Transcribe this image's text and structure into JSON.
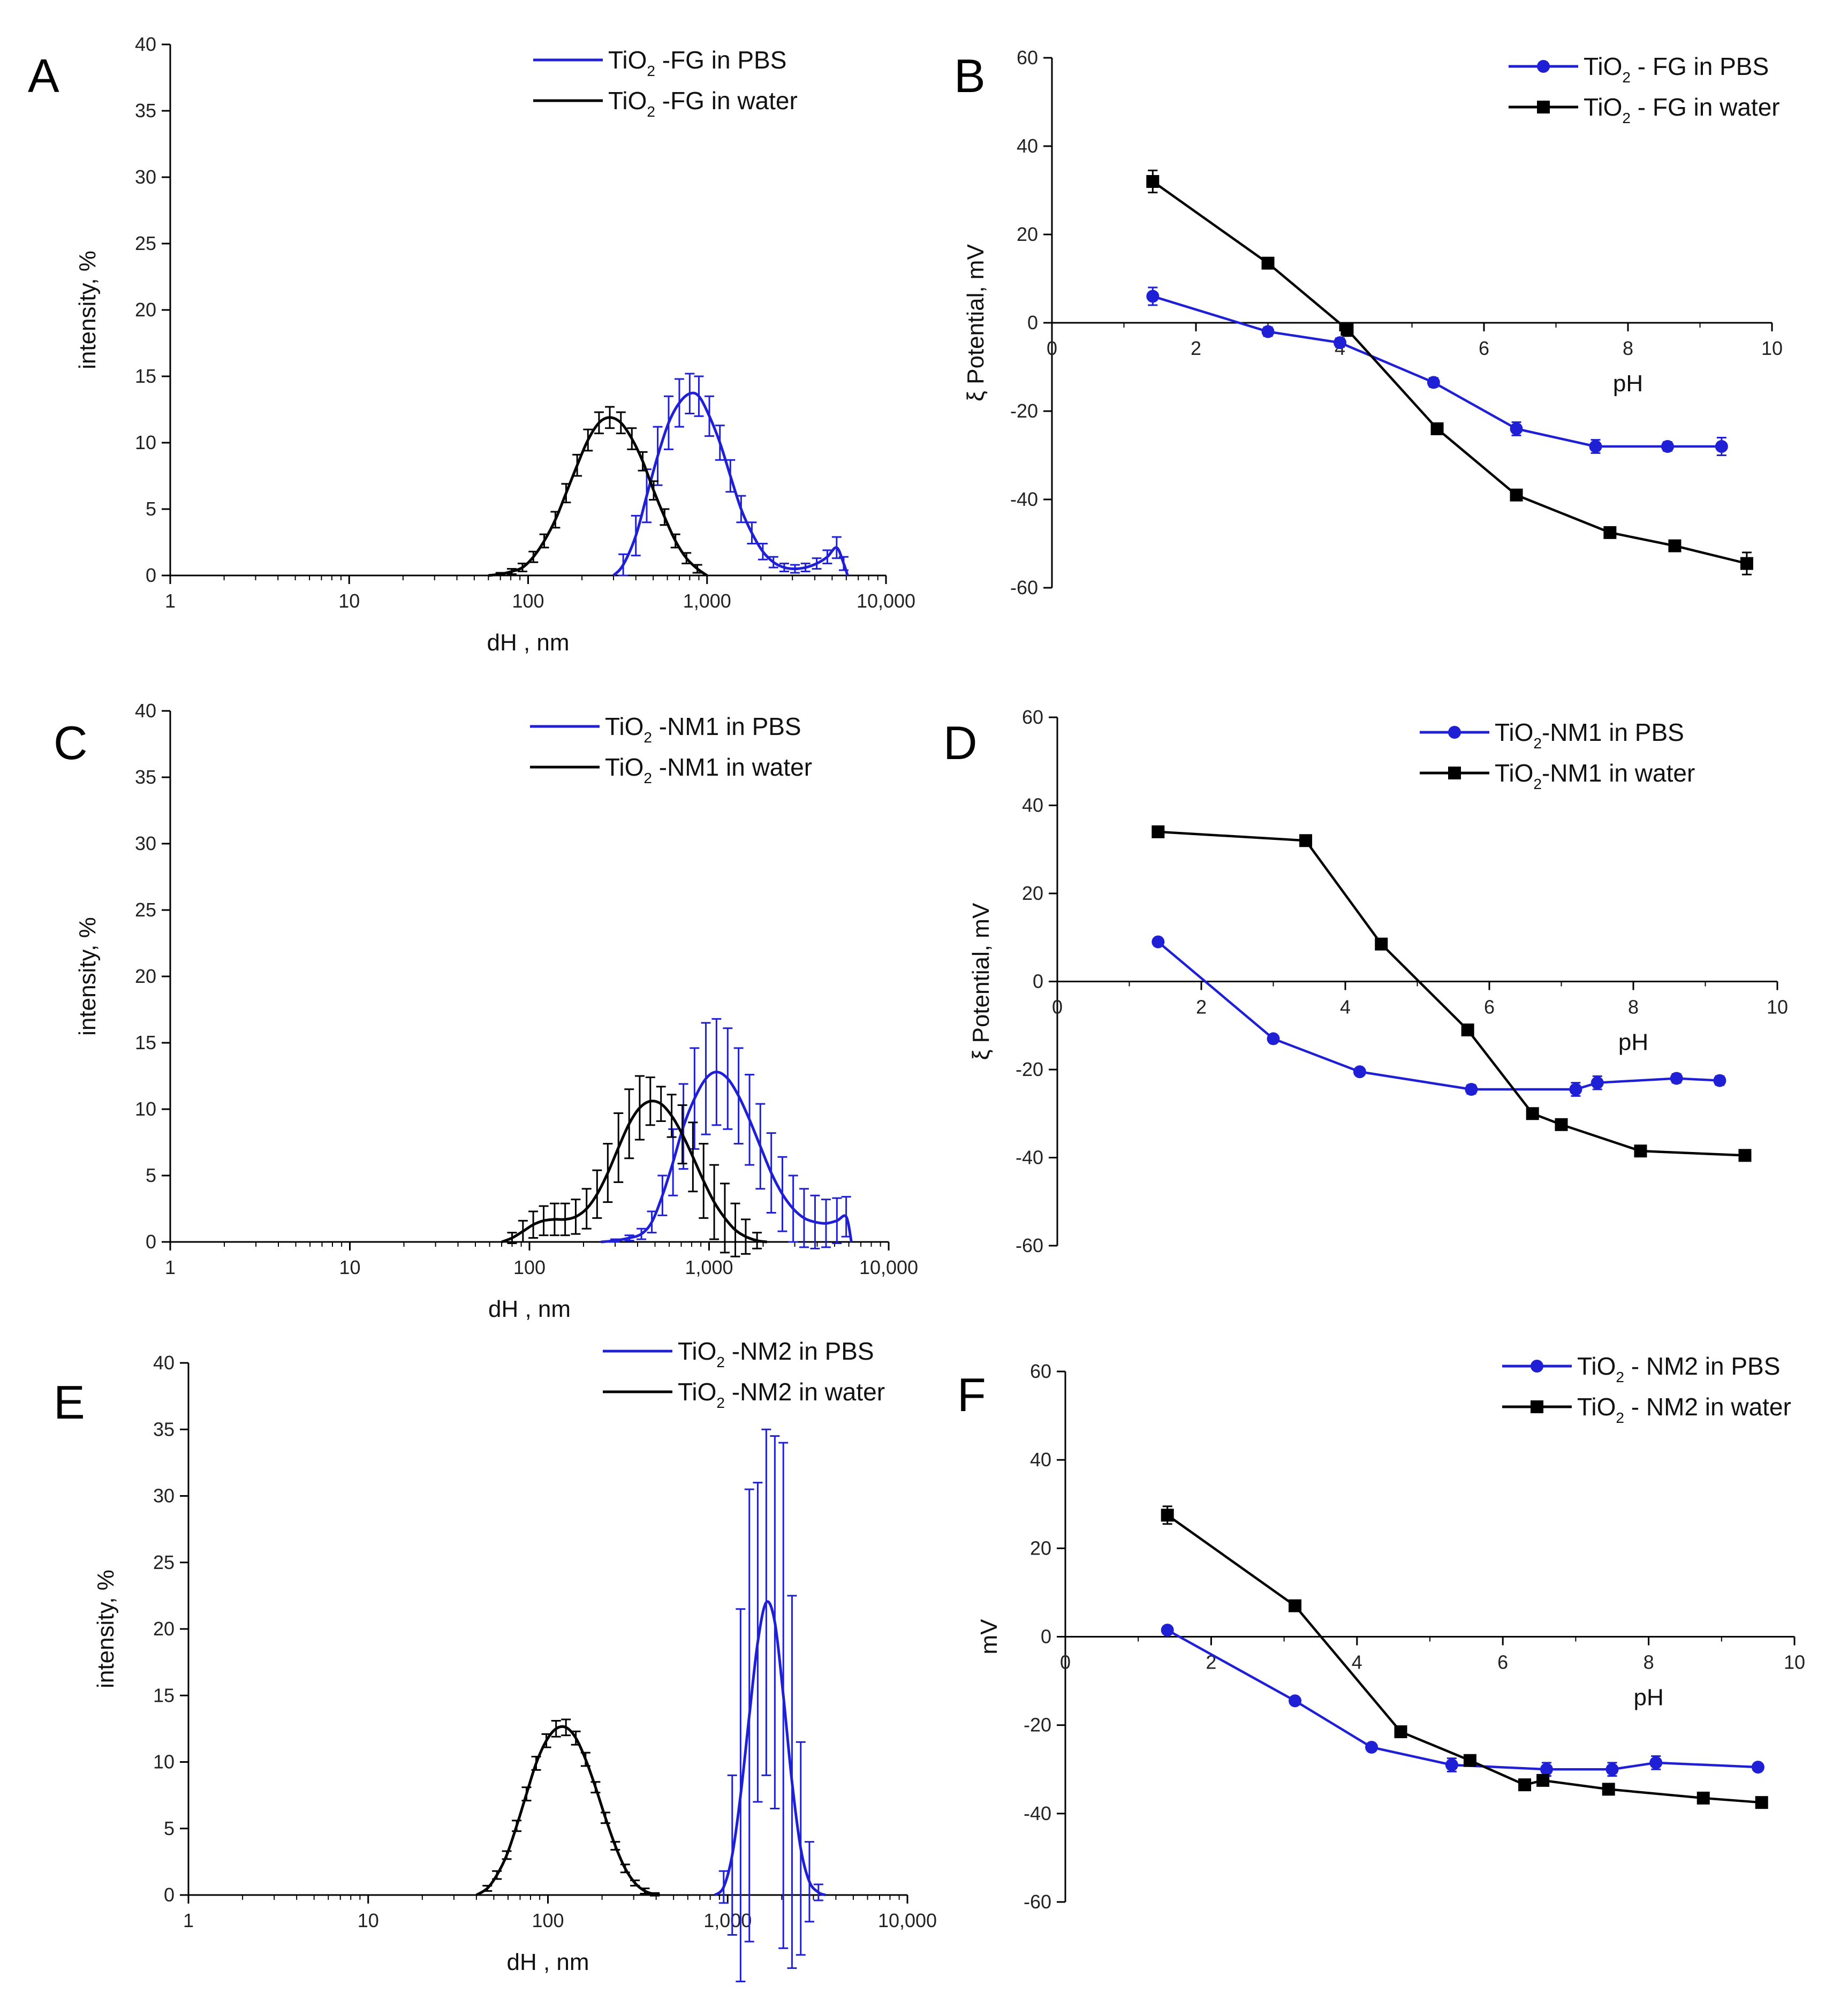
{
  "colors": {
    "pbs": "#1f1fd6",
    "water": "#000000"
  },
  "chart_data": [
    {
      "panel": "A",
      "type": "line",
      "xscale": "log",
      "xlabel": "dH , nm",
      "ylabel": "intensity, %",
      "xlim": [
        1,
        10000
      ],
      "ylim": [
        0,
        40
      ],
      "xticks": [
        1,
        10,
        100,
        1000,
        10000
      ],
      "xticklabels": [
        "1",
        "10",
        "100",
        "1,000",
        "10,000"
      ],
      "yticks": [
        0,
        5,
        10,
        15,
        20,
        25,
        30,
        35,
        40
      ],
      "legend": {
        "position": "top-right"
      },
      "series": [
        {
          "name": "TiO2 -FG in PBS",
          "base": "TiO",
          "sub": "2",
          "suffix": " -FG in PBS",
          "color": "#1f1fd6",
          "x": [
            300,
            340,
            400,
            460,
            530,
            610,
            700,
            800,
            900,
            1030,
            1180,
            1350,
            1550,
            1780,
            2050,
            2350,
            2700,
            3100,
            3550,
            4100,
            4700,
            5300,
            5800,
            6100
          ],
          "y": [
            0,
            0.8,
            3,
            6,
            9,
            11.5,
            13,
            13.7,
            13.5,
            12,
            10,
            7.5,
            5,
            3.2,
            1.8,
            1,
            0.6,
            0.5,
            0.6,
            0.9,
            1.4,
            2.1,
            0.9,
            0
          ],
          "err": [
            0,
            0.8,
            1.5,
            2,
            2.2,
            2,
            1.8,
            1.5,
            1.5,
            1.5,
            1.3,
            1.2,
            1,
            0.8,
            0.6,
            0.4,
            0.3,
            0.3,
            0.3,
            0.4,
            0.5,
            0.8,
            0.5,
            0
          ]
        },
        {
          "name": "TiO2 -FG in water",
          "base": "TiO",
          "sub": "2",
          "suffix": " -FG in water",
          "color": "#000000",
          "x": [
            60,
            70,
            81,
            93,
            107,
            123,
            142,
            163,
            188,
            216,
            249,
            286,
            330,
            380,
            437,
            503,
            579,
            666,
            767,
            883,
            1000
          ],
          "y": [
            0,
            0.1,
            0.3,
            0.6,
            1.4,
            2.6,
            4.2,
            6.2,
            8.3,
            10.2,
            11.5,
            11.9,
            11.5,
            10.3,
            8.6,
            6.4,
            4.4,
            2.6,
            1.3,
            0.5,
            0
          ],
          "err": [
            0,
            0.1,
            0.2,
            0.3,
            0.4,
            0.5,
            0.6,
            0.7,
            0.8,
            0.8,
            0.8,
            0.8,
            0.8,
            0.8,
            0.7,
            0.7,
            0.6,
            0.5,
            0.4,
            0.3,
            0
          ]
        }
      ]
    },
    {
      "panel": "B",
      "type": "line",
      "xlabel": "pH",
      "ylabel": "ξ Potential, mV",
      "xlim": [
        0,
        10
      ],
      "ylim": [
        -60,
        60
      ],
      "xticks": [
        0,
        2,
        4,
        6,
        8,
        10
      ],
      "yticks": [
        -60,
        -40,
        -20,
        0,
        20,
        40,
        60
      ],
      "legend": {
        "position": "top-right"
      },
      "series": [
        {
          "name": "TiO2 - FG in PBS",
          "base": "TiO",
          "sub": "2",
          "suffix": " - FG in PBS",
          "color": "#1f1fd6",
          "marker": "circle",
          "x": [
            1.4,
            3.0,
            4.0,
            5.3,
            6.45,
            7.55,
            8.55,
            9.3
          ],
          "y": [
            6,
            -2,
            -4.5,
            -13.5,
            -24,
            -28,
            -28,
            -28
          ],
          "err": [
            2,
            1,
            1,
            1,
            1.5,
            1.5,
            1,
            2
          ]
        },
        {
          "name": "TiO2 - FG in water",
          "base": "TiO",
          "sub": "2",
          "suffix": " - FG in water",
          "color": "#000000",
          "marker": "square",
          "x": [
            1.4,
            3.0,
            4.1,
            5.35,
            6.45,
            7.75,
            8.65,
            9.65
          ],
          "y": [
            32,
            13.5,
            -1.5,
            -24,
            -39,
            -47.5,
            -50.5,
            -54.5
          ],
          "err": [
            2.5,
            1,
            1.5,
            1,
            1,
            1,
            1,
            2.5
          ]
        }
      ]
    },
    {
      "panel": "C",
      "type": "line",
      "xscale": "log",
      "xlabel": "dH , nm",
      "ylabel": "intensity, %",
      "xlim": [
        1,
        10000
      ],
      "ylim": [
        0,
        40
      ],
      "xticks": [
        1,
        10,
        100,
        1000,
        10000
      ],
      "xticklabels": [
        "1",
        "10",
        "100",
        "1,000",
        "10,000"
      ],
      "yticks": [
        0,
        5,
        10,
        15,
        20,
        25,
        30,
        35,
        40
      ],
      "legend": {
        "position": "top-right"
      },
      "series": [
        {
          "name": "TiO2 -NM1 in PBS",
          "base": "TiO",
          "sub": "2",
          "suffix": " -NM1 in PBS",
          "color": "#1f1fd6",
          "x": [
            250,
            300,
            360,
            420,
            480,
            550,
            630,
            720,
            830,
            960,
            1100,
            1270,
            1460,
            1680,
            1930,
            2220,
            2560,
            2940,
            3380,
            3890,
            4480,
            5150,
            5800,
            6200
          ],
          "y": [
            0,
            0.1,
            0.3,
            0.6,
            1.5,
            3.5,
            6,
            8.7,
            10.8,
            12.3,
            12.8,
            12.3,
            11,
            9.2,
            7.2,
            5.2,
            3.6,
            2.5,
            1.8,
            1.5,
            1.4,
            1.6,
            1.9,
            0
          ],
          "err": [
            0,
            0.1,
            0.2,
            0.4,
            0.8,
            1.5,
            2.5,
            3.2,
            3.8,
            4.2,
            4,
            3.8,
            3.6,
            3.4,
            3.2,
            3,
            2.8,
            2.5,
            2.2,
            2,
            1.8,
            1.7,
            1.5,
            0
          ]
        },
        {
          "name": "TiO2 -NM1 in water",
          "base": "TiO",
          "sub": "2",
          "suffix": " -NM1 in water",
          "color": "#000000",
          "x": [
            70,
            80,
            92,
            105,
            120,
            138,
            158,
            181,
            208,
            238,
            273,
            313,
            359,
            411,
            471,
            540,
            619,
            710,
            813,
            932,
            1068,
            1224,
            1400,
            1600,
            1850,
            2100
          ],
          "y": [
            0,
            0.3,
            0.8,
            1.3,
            1.6,
            1.7,
            1.7,
            1.9,
            2.5,
            3.6,
            5.2,
            7.1,
            8.9,
            10.1,
            10.6,
            10.4,
            9.5,
            8.1,
            6.4,
            4.6,
            3,
            1.8,
            0.9,
            0.4,
            0.1,
            0
          ],
          "err": [
            0,
            0.4,
            0.8,
            1,
            1.1,
            1.2,
            1.2,
            1.3,
            1.5,
            1.8,
            2.2,
            2.6,
            2.6,
            2.4,
            1.8,
            1.3,
            1.6,
            2.2,
            2.6,
            2.8,
            2.8,
            2.6,
            2,
            1.3,
            0.6,
            0
          ]
        }
      ]
    },
    {
      "panel": "D",
      "type": "line",
      "xlabel": "pH",
      "ylabel": "ξ Potential, mV",
      "xlim": [
        0,
        10
      ],
      "ylim": [
        -60,
        60
      ],
      "xticks": [
        0,
        2,
        4,
        6,
        8,
        10
      ],
      "yticks": [
        -60,
        -40,
        -20,
        0,
        20,
        40,
        60
      ],
      "legend": {
        "position": "top-right"
      },
      "series": [
        {
          "name": "TiO2-NM1 in PBS",
          "base": "TiO",
          "sub": "2",
          "suffix": "-NM1 in PBS",
          "color": "#1f1fd6",
          "marker": "circle",
          "x": [
            1.4,
            3.0,
            4.2,
            5.75,
            7.2,
            7.5,
            8.6,
            9.2
          ],
          "y": [
            9,
            -13,
            -20.5,
            -24.5,
            -24.5,
            -23,
            -22,
            -22.5
          ],
          "err": [
            0.5,
            0.5,
            0.5,
            1,
            1.5,
            1.5,
            1,
            1
          ]
        },
        {
          "name": "TiO2-NM1 in water",
          "base": "TiO",
          "sub": "2",
          "suffix": "-NM1 in water",
          "color": "#000000",
          "marker": "square",
          "x": [
            1.4,
            3.45,
            4.5,
            5.7,
            6.6,
            7.0,
            8.1,
            9.55
          ],
          "y": [
            34,
            32,
            8.5,
            -11,
            -30,
            -32.5,
            -38.5,
            -39.5
          ],
          "err": [
            0.5,
            0.5,
            0.5,
            0.5,
            0.5,
            0.5,
            0.5,
            0.5
          ]
        }
      ]
    },
    {
      "panel": "E",
      "type": "line",
      "xscale": "log",
      "xlabel": "dH , nm",
      "ylabel": "intensity, %",
      "xlim": [
        1,
        10000
      ],
      "ylim": [
        0,
        40
      ],
      "xticks": [
        1,
        10,
        100,
        1000,
        10000
      ],
      "xticklabels": [
        "1",
        "10",
        "100",
        "1,000",
        "10,000"
      ],
      "yticks": [
        0,
        5,
        10,
        15,
        20,
        25,
        30,
        35,
        40
      ],
      "legend": {
        "position": "top-right"
      },
      "series": [
        {
          "name": "TiO2 -NM2 in PBS",
          "base": "TiO",
          "sub": "2",
          "suffix": " -NM2 in PBS",
          "color": "#1f1fd6",
          "x": [
            850,
            950,
            1060,
            1180,
            1320,
            1470,
            1640,
            1830,
            2040,
            2280,
            2550,
            2850,
            3200,
            3500
          ],
          "y": [
            0,
            0.6,
            3,
            7.5,
            13.5,
            19,
            22,
            20.5,
            15,
            8.5,
            3.5,
            1,
            0.2,
            0
          ],
          "err": [
            0,
            1.2,
            6,
            14,
            17,
            12,
            13,
            14,
            19,
            14,
            8,
            3,
            0.6,
            0
          ]
        },
        {
          "name": "TiO2 -NM2 in water",
          "base": "TiO",
          "sub": "2",
          "suffix": " -NM2 in water",
          "color": "#000000",
          "x": [
            40,
            46,
            52,
            59,
            67,
            76,
            86,
            98,
            111,
            126,
            143,
            162,
            184,
            209,
            237,
            269,
            305,
            346,
            393,
            420
          ],
          "y": [
            0,
            0.5,
            1.5,
            3,
            5.2,
            7.6,
            9.9,
            11.6,
            12.5,
            12.6,
            11.8,
            10.2,
            8.1,
            5.8,
            3.7,
            2,
            0.9,
            0.3,
            0.05,
            0
          ],
          "err": [
            0,
            0.2,
            0.3,
            0.3,
            0.4,
            0.5,
            0.5,
            0.5,
            0.6,
            0.6,
            0.5,
            0.5,
            0.4,
            0.4,
            0.3,
            0.3,
            0.2,
            0.2,
            0.1,
            0
          ]
        }
      ]
    },
    {
      "panel": "F",
      "type": "line",
      "xlabel": "pH",
      "ylabel": "mV",
      "xlim": [
        0,
        10
      ],
      "ylim": [
        -60,
        60
      ],
      "xticks": [
        0,
        2,
        4,
        6,
        8,
        10
      ],
      "yticks": [
        -60,
        -40,
        -20,
        0,
        20,
        40,
        60
      ],
      "legend": {
        "position": "top-right"
      },
      "series": [
        {
          "name": "TiO2 - NM2 in PBS",
          "base": "TiO",
          "sub": "2",
          "suffix": " - NM2 in PBS",
          "color": "#1f1fd6",
          "marker": "circle",
          "x": [
            1.4,
            3.15,
            4.2,
            5.3,
            6.6,
            7.5,
            8.1,
            9.5
          ],
          "y": [
            1.5,
            -14.5,
            -25,
            -29,
            -30,
            -30,
            -28.5,
            -29.5
          ],
          "err": [
            0.5,
            0.5,
            0.5,
            1.5,
            1.5,
            1.5,
            1.5,
            0.5
          ]
        },
        {
          "name": "TiO2 - NM2 in water",
          "base": "TiO",
          "sub": "2",
          "suffix": " - NM2 in water",
          "color": "#000000",
          "marker": "square",
          "x": [
            1.4,
            3.15,
            4.6,
            5.55,
            6.3,
            6.55,
            7.45,
            8.75,
            9.55
          ],
          "y": [
            27.5,
            7,
            -21.5,
            -28,
            -33.5,
            -32.5,
            -34.5,
            -36.5,
            -37.5
          ],
          "err": [
            2,
            0.5,
            0.5,
            0.5,
            0.5,
            0.5,
            0.5,
            0.5,
            0.5
          ]
        }
      ]
    }
  ]
}
